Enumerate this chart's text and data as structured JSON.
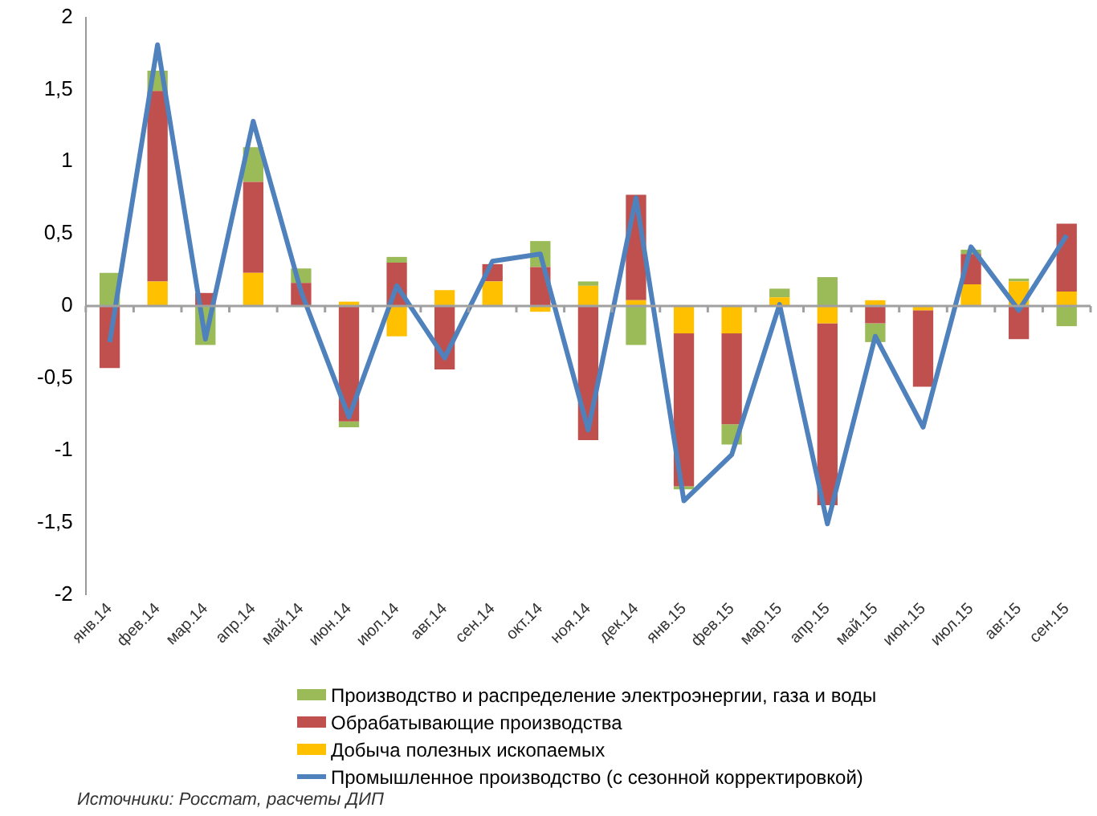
{
  "chart_data": {
    "type": "bar",
    "stacked": true,
    "legend": "bottom",
    "grid": false,
    "categories": [
      "янв.14",
      "фев.14",
      "мар.14",
      "апр.14",
      "май.14",
      "июн.14",
      "июл.14",
      "авг.14",
      "сен.14",
      "окт.14",
      "ноя.14",
      "дек.14",
      "янв.15",
      "фев.15",
      "мар.15",
      "апр.15",
      "май.15",
      "июн.15",
      "июл.15",
      "авг.15",
      "сен.15"
    ],
    "series": [
      {
        "name": "Добыча полезных ископаемых",
        "color": "#ffc000",
        "values": [
          0,
          0.17,
          0,
          0.23,
          0,
          0.03,
          -0.21,
          0.11,
          0.17,
          -0.04,
          0.14,
          0.04,
          -0.19,
          -0.19,
          0.06,
          -0.12,
          0.04,
          -0.03,
          0.15,
          0.17,
          0.1
        ]
      },
      {
        "name": "Обрабатывающие производства",
        "color": "#c0504d",
        "values": [
          -0.43,
          1.32,
          0.09,
          0.63,
          0.16,
          -0.8,
          0.3,
          -0.44,
          0.12,
          0.27,
          -0.93,
          0.73,
          -1.06,
          -0.63,
          0,
          -1.26,
          -0.12,
          -0.53,
          0.21,
          -0.23,
          0.47
        ]
      },
      {
        "name": "Производство и распределение электроэнергии, газа и воды",
        "color": "#9bbb59",
        "values": [
          0.23,
          0.14,
          -0.27,
          0.24,
          0.1,
          -0.04,
          0.04,
          0,
          0,
          0.18,
          0.03,
          -0.27,
          -0.02,
          -0.14,
          0.06,
          0.2,
          -0.13,
          0,
          0.03,
          0.02,
          -0.14
        ]
      },
      {
        "name": "Промышленное производство (с сезонной корректировкой)",
        "type": "line",
        "color": "#4f81bd",
        "marker": "none",
        "values": [
          -0.25,
          1.81,
          -0.23,
          1.28,
          0.1,
          -0.77,
          0.14,
          -0.36,
          0.31,
          0.36,
          -0.86,
          0.75,
          -1.35,
          -1.03,
          0.01,
          -1.51,
          -0.21,
          -0.84,
          0.41,
          -0.03,
          0.49
        ]
      }
    ],
    "ylim": [
      -2,
      2
    ],
    "yticks": [
      {
        "value": -2,
        "label": "-2"
      },
      {
        "value": -1.5,
        "label": "-1,5"
      },
      {
        "value": -1,
        "label": "-1"
      },
      {
        "value": -0.5,
        "label": "-0,5"
      },
      {
        "value": 0,
        "label": "0"
      },
      {
        "value": 0.5,
        "label": "0,5"
      },
      {
        "value": 1,
        "label": "1"
      },
      {
        "value": 1.5,
        "label": "1,5"
      },
      {
        "value": 2,
        "label": "2"
      }
    ],
    "ref_lines": [
      {
        "axis": "y",
        "value": 0,
        "color": "#a0a0a0"
      }
    ],
    "annotations": [
      "Источники: Росстат, расчеты ДИП"
    ]
  }
}
